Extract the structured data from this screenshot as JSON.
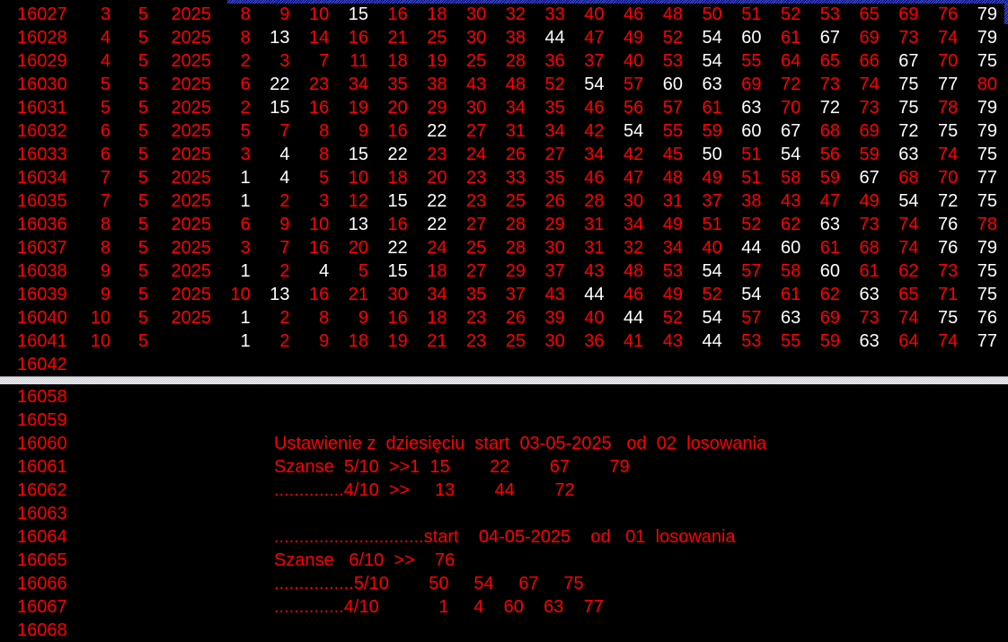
{
  "colors": {
    "background": "#000000",
    "primary_text": "#ff0000",
    "highlight_text": "#ffffff",
    "titlebar": "#00007b",
    "split_bar": "#d9d9de"
  },
  "top_table": {
    "columns": [
      "row_id",
      "day",
      "month",
      "year",
      "drawn_numbers_1_to_20"
    ],
    "rows": [
      {
        "id": "16027",
        "day": "3",
        "month": "5",
        "year": "2025",
        "nums": [
          8,
          9,
          10,
          15,
          16,
          18,
          30,
          32,
          33,
          40,
          46,
          48,
          50,
          51,
          52,
          53,
          65,
          69,
          76,
          79
        ],
        "white": [
          15,
          79
        ]
      },
      {
        "id": "16028",
        "day": "4",
        "month": "5",
        "year": "2025",
        "nums": [
          8,
          13,
          14,
          16,
          21,
          25,
          30,
          38,
          44,
          47,
          49,
          52,
          54,
          60,
          61,
          67,
          69,
          73,
          74,
          79
        ],
        "white": [
          13,
          44,
          54,
          60,
          67,
          79
        ]
      },
      {
        "id": "16029",
        "day": "4",
        "month": "5",
        "year": "2025",
        "nums": [
          2,
          3,
          7,
          11,
          18,
          19,
          25,
          28,
          36,
          37,
          40,
          53,
          54,
          55,
          64,
          65,
          66,
          67,
          70,
          75
        ],
        "white": [
          54,
          67,
          75
        ]
      },
      {
        "id": "16030",
        "day": "5",
        "month": "5",
        "year": "2025",
        "nums": [
          6,
          22,
          23,
          34,
          35,
          38,
          43,
          48,
          52,
          54,
          57,
          60,
          63,
          69,
          72,
          73,
          74,
          75,
          77,
          80
        ],
        "white": [
          22,
          54,
          60,
          63,
          75,
          77
        ]
      },
      {
        "id": "16031",
        "day": "5",
        "month": "5",
        "year": "2025",
        "nums": [
          2,
          15,
          16,
          19,
          20,
          29,
          30,
          34,
          35,
          46,
          56,
          57,
          61,
          63,
          70,
          72,
          73,
          75,
          78,
          79
        ],
        "white": [
          15,
          63,
          72,
          75,
          79
        ]
      },
      {
        "id": "16032",
        "day": "6",
        "month": "5",
        "year": "2025",
        "nums": [
          5,
          7,
          8,
          9,
          16,
          22,
          27,
          31,
          34,
          42,
          54,
          55,
          59,
          60,
          67,
          68,
          69,
          72,
          75,
          79
        ],
        "white": [
          22,
          54,
          60,
          67,
          72,
          75,
          79
        ]
      },
      {
        "id": "16033",
        "day": "6",
        "month": "5",
        "year": "2025",
        "nums": [
          3,
          4,
          8,
          15,
          22,
          23,
          24,
          26,
          27,
          34,
          42,
          45,
          50,
          51,
          54,
          56,
          59,
          63,
          74,
          75
        ],
        "white": [
          4,
          15,
          22,
          50,
          54,
          63,
          75
        ]
      },
      {
        "id": "16034",
        "day": "7",
        "month": "5",
        "year": "2025",
        "nums": [
          1,
          4,
          5,
          10,
          18,
          20,
          23,
          33,
          35,
          46,
          47,
          48,
          49,
          51,
          58,
          59,
          67,
          68,
          70,
          77
        ],
        "white": [
          1,
          4,
          67,
          77
        ]
      },
      {
        "id": "16035",
        "day": "7",
        "month": "5",
        "year": "2025",
        "nums": [
          1,
          2,
          3,
          12,
          15,
          22,
          23,
          25,
          26,
          28,
          30,
          31,
          37,
          38,
          43,
          47,
          49,
          54,
          72,
          75
        ],
        "white": [
          1,
          15,
          22,
          54,
          72,
          75
        ]
      },
      {
        "id": "16036",
        "day": "8",
        "month": "5",
        "year": "2025",
        "nums": [
          6,
          9,
          10,
          13,
          16,
          22,
          27,
          28,
          29,
          31,
          34,
          49,
          51,
          52,
          62,
          63,
          73,
          74,
          76,
          78
        ],
        "white": [
          13,
          22,
          63,
          76
        ]
      },
      {
        "id": "16037",
        "day": "8",
        "month": "5",
        "year": "2025",
        "nums": [
          3,
          7,
          16,
          20,
          22,
          24,
          25,
          28,
          30,
          31,
          32,
          34,
          40,
          44,
          60,
          61,
          68,
          74,
          76,
          79
        ],
        "white": [
          22,
          44,
          60,
          76,
          79
        ]
      },
      {
        "id": "16038",
        "day": "9",
        "month": "5",
        "year": "2025",
        "nums": [
          1,
          2,
          4,
          5,
          15,
          18,
          27,
          29,
          37,
          43,
          48,
          53,
          54,
          57,
          58,
          60,
          61,
          62,
          73,
          75
        ],
        "white": [
          1,
          4,
          15,
          54,
          60,
          75
        ]
      },
      {
        "id": "16039",
        "day": "9",
        "month": "5",
        "year": "2025",
        "nums": [
          10,
          13,
          16,
          21,
          30,
          34,
          35,
          37,
          43,
          44,
          46,
          49,
          52,
          54,
          61,
          62,
          63,
          65,
          71,
          75
        ],
        "white": [
          13,
          44,
          54,
          63,
          75
        ]
      },
      {
        "id": "16040",
        "day": "10",
        "month": "5",
        "year": "2025",
        "nums": [
          1,
          2,
          8,
          9,
          16,
          18,
          23,
          26,
          39,
          40,
          44,
          52,
          54,
          57,
          63,
          69,
          73,
          74,
          75,
          76
        ],
        "white": [
          1,
          44,
          54,
          63,
          75,
          76
        ]
      },
      {
        "id": "16041",
        "day": "10",
        "month": "5",
        "year": "",
        "nums": [
          1,
          2,
          9,
          18,
          19,
          21,
          23,
          25,
          30,
          36,
          41,
          43,
          44,
          53,
          55,
          59,
          63,
          64,
          74,
          77
        ],
        "white": [
          1,
          44,
          63,
          77
        ]
      },
      {
        "id": "16042",
        "day": "",
        "month": "",
        "year": "",
        "nums": [],
        "white": []
      }
    ]
  },
  "bottom_section": {
    "rows": [
      {
        "id": "16058",
        "text": ""
      },
      {
        "id": "16059",
        "text": ""
      },
      {
        "id": "16060",
        "text": "Ustawienie z  dziesięciu  start  03-05-2025   od  02  losowania"
      },
      {
        "id": "16061",
        "text": "Szanse  5/10  >>1  15        22        67        79"
      },
      {
        "id": "16062",
        "text": "..............4/10  >>     13        44        72"
      },
      {
        "id": "16063",
        "text": ""
      },
      {
        "id": "16064",
        "text": "..............................start    04-05-2025    od   01  losowania"
      },
      {
        "id": "16065",
        "text": "Szanse   6/10  >>    76"
      },
      {
        "id": "16066",
        "text": "................5/10        50     54     67     75"
      },
      {
        "id": "16067",
        "text": "..............4/10            1     4    60    63    77"
      },
      {
        "id": "16068",
        "text": ""
      }
    ]
  }
}
